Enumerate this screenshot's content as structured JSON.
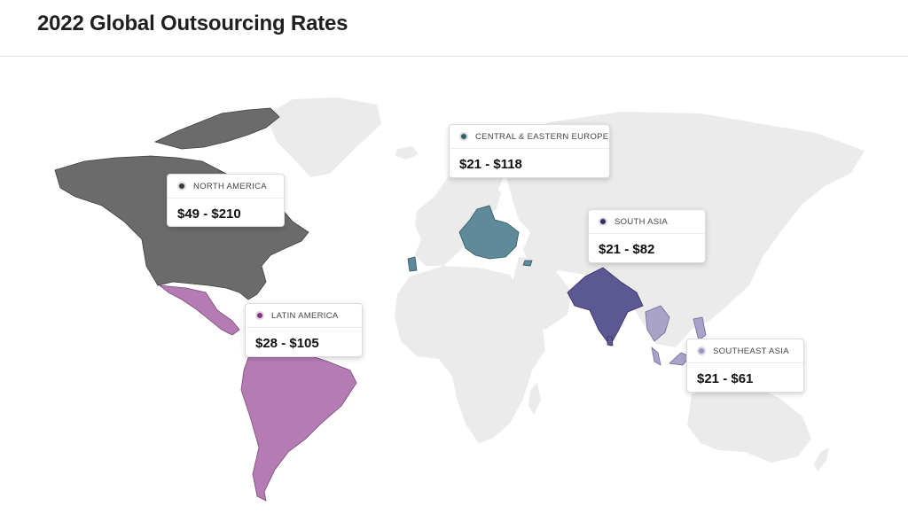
{
  "title": "2022 Global Outsourcing Rates",
  "colors": {
    "land": "#ebebeb",
    "north_america": "#6b6b6b",
    "latin_america": "#b57cb3",
    "central_eastern_europe": "#5e8a9a",
    "south_asia": "#5b5894",
    "southeast_asia": "#a9a3c8"
  },
  "regions": [
    {
      "id": "north_america",
      "label": "NORTH AMERICA",
      "rate": "$49 - $210",
      "dot_color": "#3a3a3a"
    },
    {
      "id": "central_eastern_europe",
      "label": "CENTRAL & EASTERN EUROPE",
      "rate": "$21 - $118",
      "dot_color": "#2f5e70"
    },
    {
      "id": "south_asia",
      "label": "SOUTH ASIA",
      "rate": "$21 - $82",
      "dot_color": "#2f2d66"
    },
    {
      "id": "latin_america",
      "label": "LATIN AMERICA",
      "rate": "$28 - $105",
      "dot_color": "#8a2f7f"
    },
    {
      "id": "southeast_asia",
      "label": "SOUTHEAST ASIA",
      "rate": "$21 - $61",
      "dot_color": "#9b93c9"
    }
  ]
}
